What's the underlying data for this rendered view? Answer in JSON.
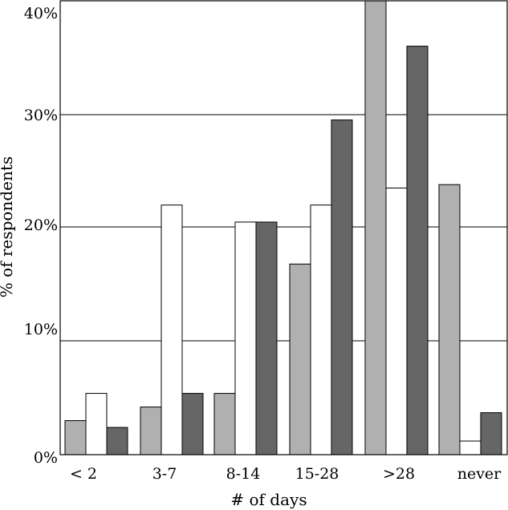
{
  "chart_data": {
    "type": "bar",
    "title": "",
    "xlabel": "# of days",
    "ylabel": "% of respondents",
    "categories": [
      "< 2",
      "3-7",
      "8-14",
      "15-28",
      ">28",
      "never"
    ],
    "y_tick_labels": [
      "0%",
      "10%",
      "20%",
      "30%",
      "40%"
    ],
    "series": [
      {
        "color": "#b0b0b0",
        "values": [
          3.0,
          4.2,
          5.4,
          16.8,
          40.0,
          23.8
        ]
      },
      {
        "color": "#ffffff",
        "values": [
          5.4,
          22.0,
          20.5,
          22.0,
          23.5,
          1.2
        ]
      },
      {
        "color": "#666666",
        "values": [
          2.4,
          5.4,
          20.5,
          29.5,
          36.0,
          3.7
        ]
      }
    ],
    "grid": "horizontal"
  }
}
